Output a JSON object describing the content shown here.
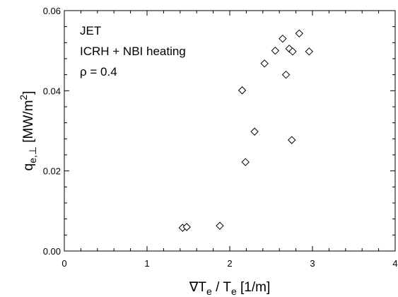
{
  "chart_data": {
    "type": "scatter",
    "marker": "diamond-open",
    "annotations": [
      "JET",
      "ICRH + NBI heating",
      "ρ = 0.4"
    ],
    "xlabel": {
      "prefix": "∇T",
      "sub1": "e",
      "mid": " / T",
      "sub2": "e",
      "suffix": " [1/m]"
    },
    "ylabel": {
      "prefix": "q",
      "sub": "e,⊥",
      "unit_open": "  [MW/m",
      "sup": "2",
      "unit_close": "]"
    },
    "xlim": [
      0,
      4
    ],
    "ylim": [
      0,
      0.06
    ],
    "xticks": [
      0,
      1,
      2,
      3,
      4
    ],
    "xtick_labels": [
      "0",
      "1",
      "2",
      "3",
      "4"
    ],
    "yticks": [
      0,
      0.02,
      0.04,
      0.06
    ],
    "ytick_labels": [
      "0.00",
      "0.02",
      "0.04",
      "0.06"
    ],
    "points": [
      {
        "x": 1.43,
        "y": 0.0058
      },
      {
        "x": 1.48,
        "y": 0.006
      },
      {
        "x": 1.88,
        "y": 0.0063
      },
      {
        "x": 2.19,
        "y": 0.0222
      },
      {
        "x": 2.3,
        "y": 0.0298
      },
      {
        "x": 2.15,
        "y": 0.0401
      },
      {
        "x": 2.42,
        "y": 0.0468
      },
      {
        "x": 2.55,
        "y": 0.05
      },
      {
        "x": 2.64,
        "y": 0.053
      },
      {
        "x": 2.68,
        "y": 0.044
      },
      {
        "x": 2.72,
        "y": 0.0505
      },
      {
        "x": 2.76,
        "y": 0.0498
      },
      {
        "x": 2.75,
        "y": 0.0277
      },
      {
        "x": 2.84,
        "y": 0.0543
      },
      {
        "x": 2.96,
        "y": 0.0498
      }
    ]
  }
}
